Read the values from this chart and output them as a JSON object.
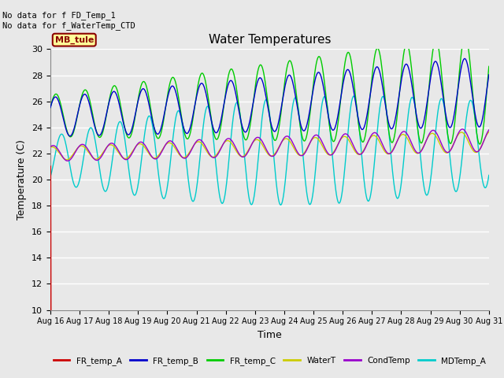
{
  "title": "Water Temperatures",
  "xlabel": "Time",
  "ylabel": "Temperature (C)",
  "ylim": [
    10,
    30
  ],
  "yticks": [
    10,
    12,
    14,
    16,
    18,
    20,
    22,
    24,
    26,
    28,
    30
  ],
  "x_labels": [
    "Aug 16",
    "Aug 17",
    "Aug 18",
    "Aug 19",
    "Aug 20",
    "Aug 21",
    "Aug 22",
    "Aug 23",
    "Aug 24",
    "Aug 25",
    "Aug 26",
    "Aug 27",
    "Aug 28",
    "Aug 29",
    "Aug 30",
    "Aug 31"
  ],
  "annotation_text": "No data for f FD_Temp_1\nNo data for f_WaterTemp_CTD",
  "station_label": "MB_tule",
  "background_color": "#e8e8e8",
  "plot_bg_color": "#e8e8e8",
  "fig_bg_color": "#e8e8e8",
  "grid_color": "#ffffff",
  "colors": {
    "FR_temp_A": "#cc0000",
    "FR_temp_B": "#0000cc",
    "FR_temp_C": "#00cc00",
    "WaterT": "#cccc00",
    "CondTemp": "#9900cc",
    "MDTemp_A": "#00cccc"
  },
  "legend_entries": [
    "FR_temp_A",
    "FR_temp_B",
    "FR_temp_C",
    "WaterT",
    "CondTemp",
    "MDTemp_A"
  ]
}
